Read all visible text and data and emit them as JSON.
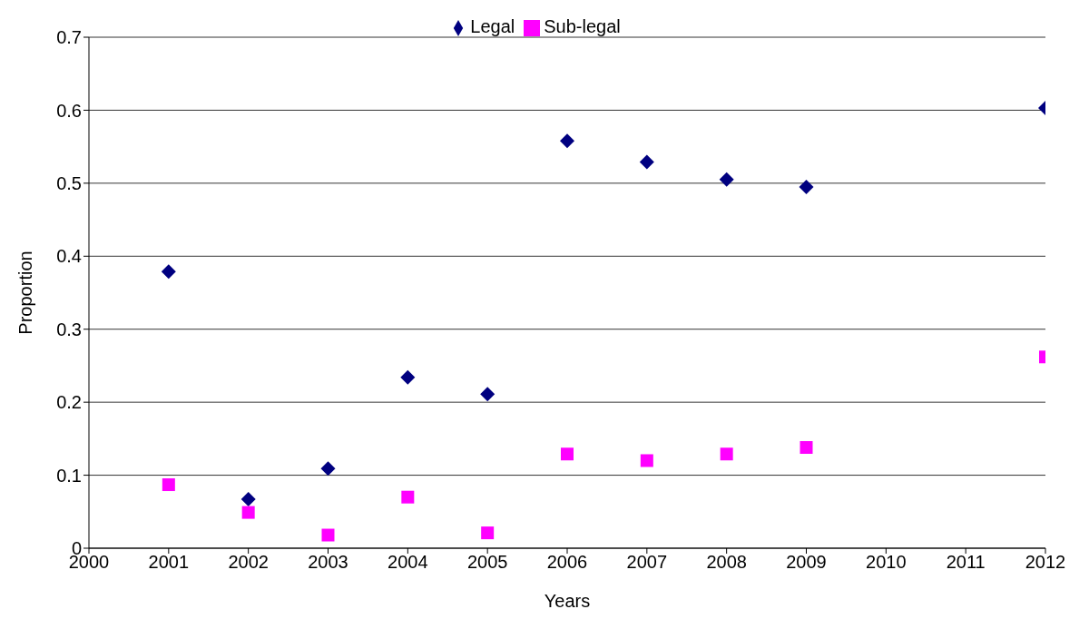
{
  "chart_data": {
    "type": "scatter",
    "xlabel": "Years",
    "ylabel": "Proportion",
    "x": [
      2001,
      2002,
      2003,
      2004,
      2005,
      2006,
      2007,
      2008,
      2009,
      2012
    ],
    "series": [
      {
        "name": "Legal",
        "color": "#000080",
        "marker": "diamond",
        "values": [
          0.379,
          0.067,
          0.109,
          0.234,
          0.211,
          0.558,
          0.529,
          0.505,
          0.495,
          0.603
        ]
      },
      {
        "name": "Sub-legal",
        "color": "#ff00ff",
        "marker": "square",
        "values": [
          0.087,
          0.049,
          0.018,
          0.07,
          0.021,
          0.129,
          0.12,
          0.129,
          0.138,
          0.262
        ]
      }
    ],
    "xlim": [
      2000,
      2012
    ],
    "xticks": [
      2000,
      2001,
      2002,
      2003,
      2004,
      2005,
      2006,
      2007,
      2008,
      2009,
      2010,
      2011,
      2012
    ],
    "ylim": [
      0,
      0.7
    ],
    "yticks": [
      0,
      0.1,
      0.2,
      0.3,
      0.4,
      0.5,
      0.6,
      0.7
    ],
    "grid": "y",
    "legend": "top"
  }
}
